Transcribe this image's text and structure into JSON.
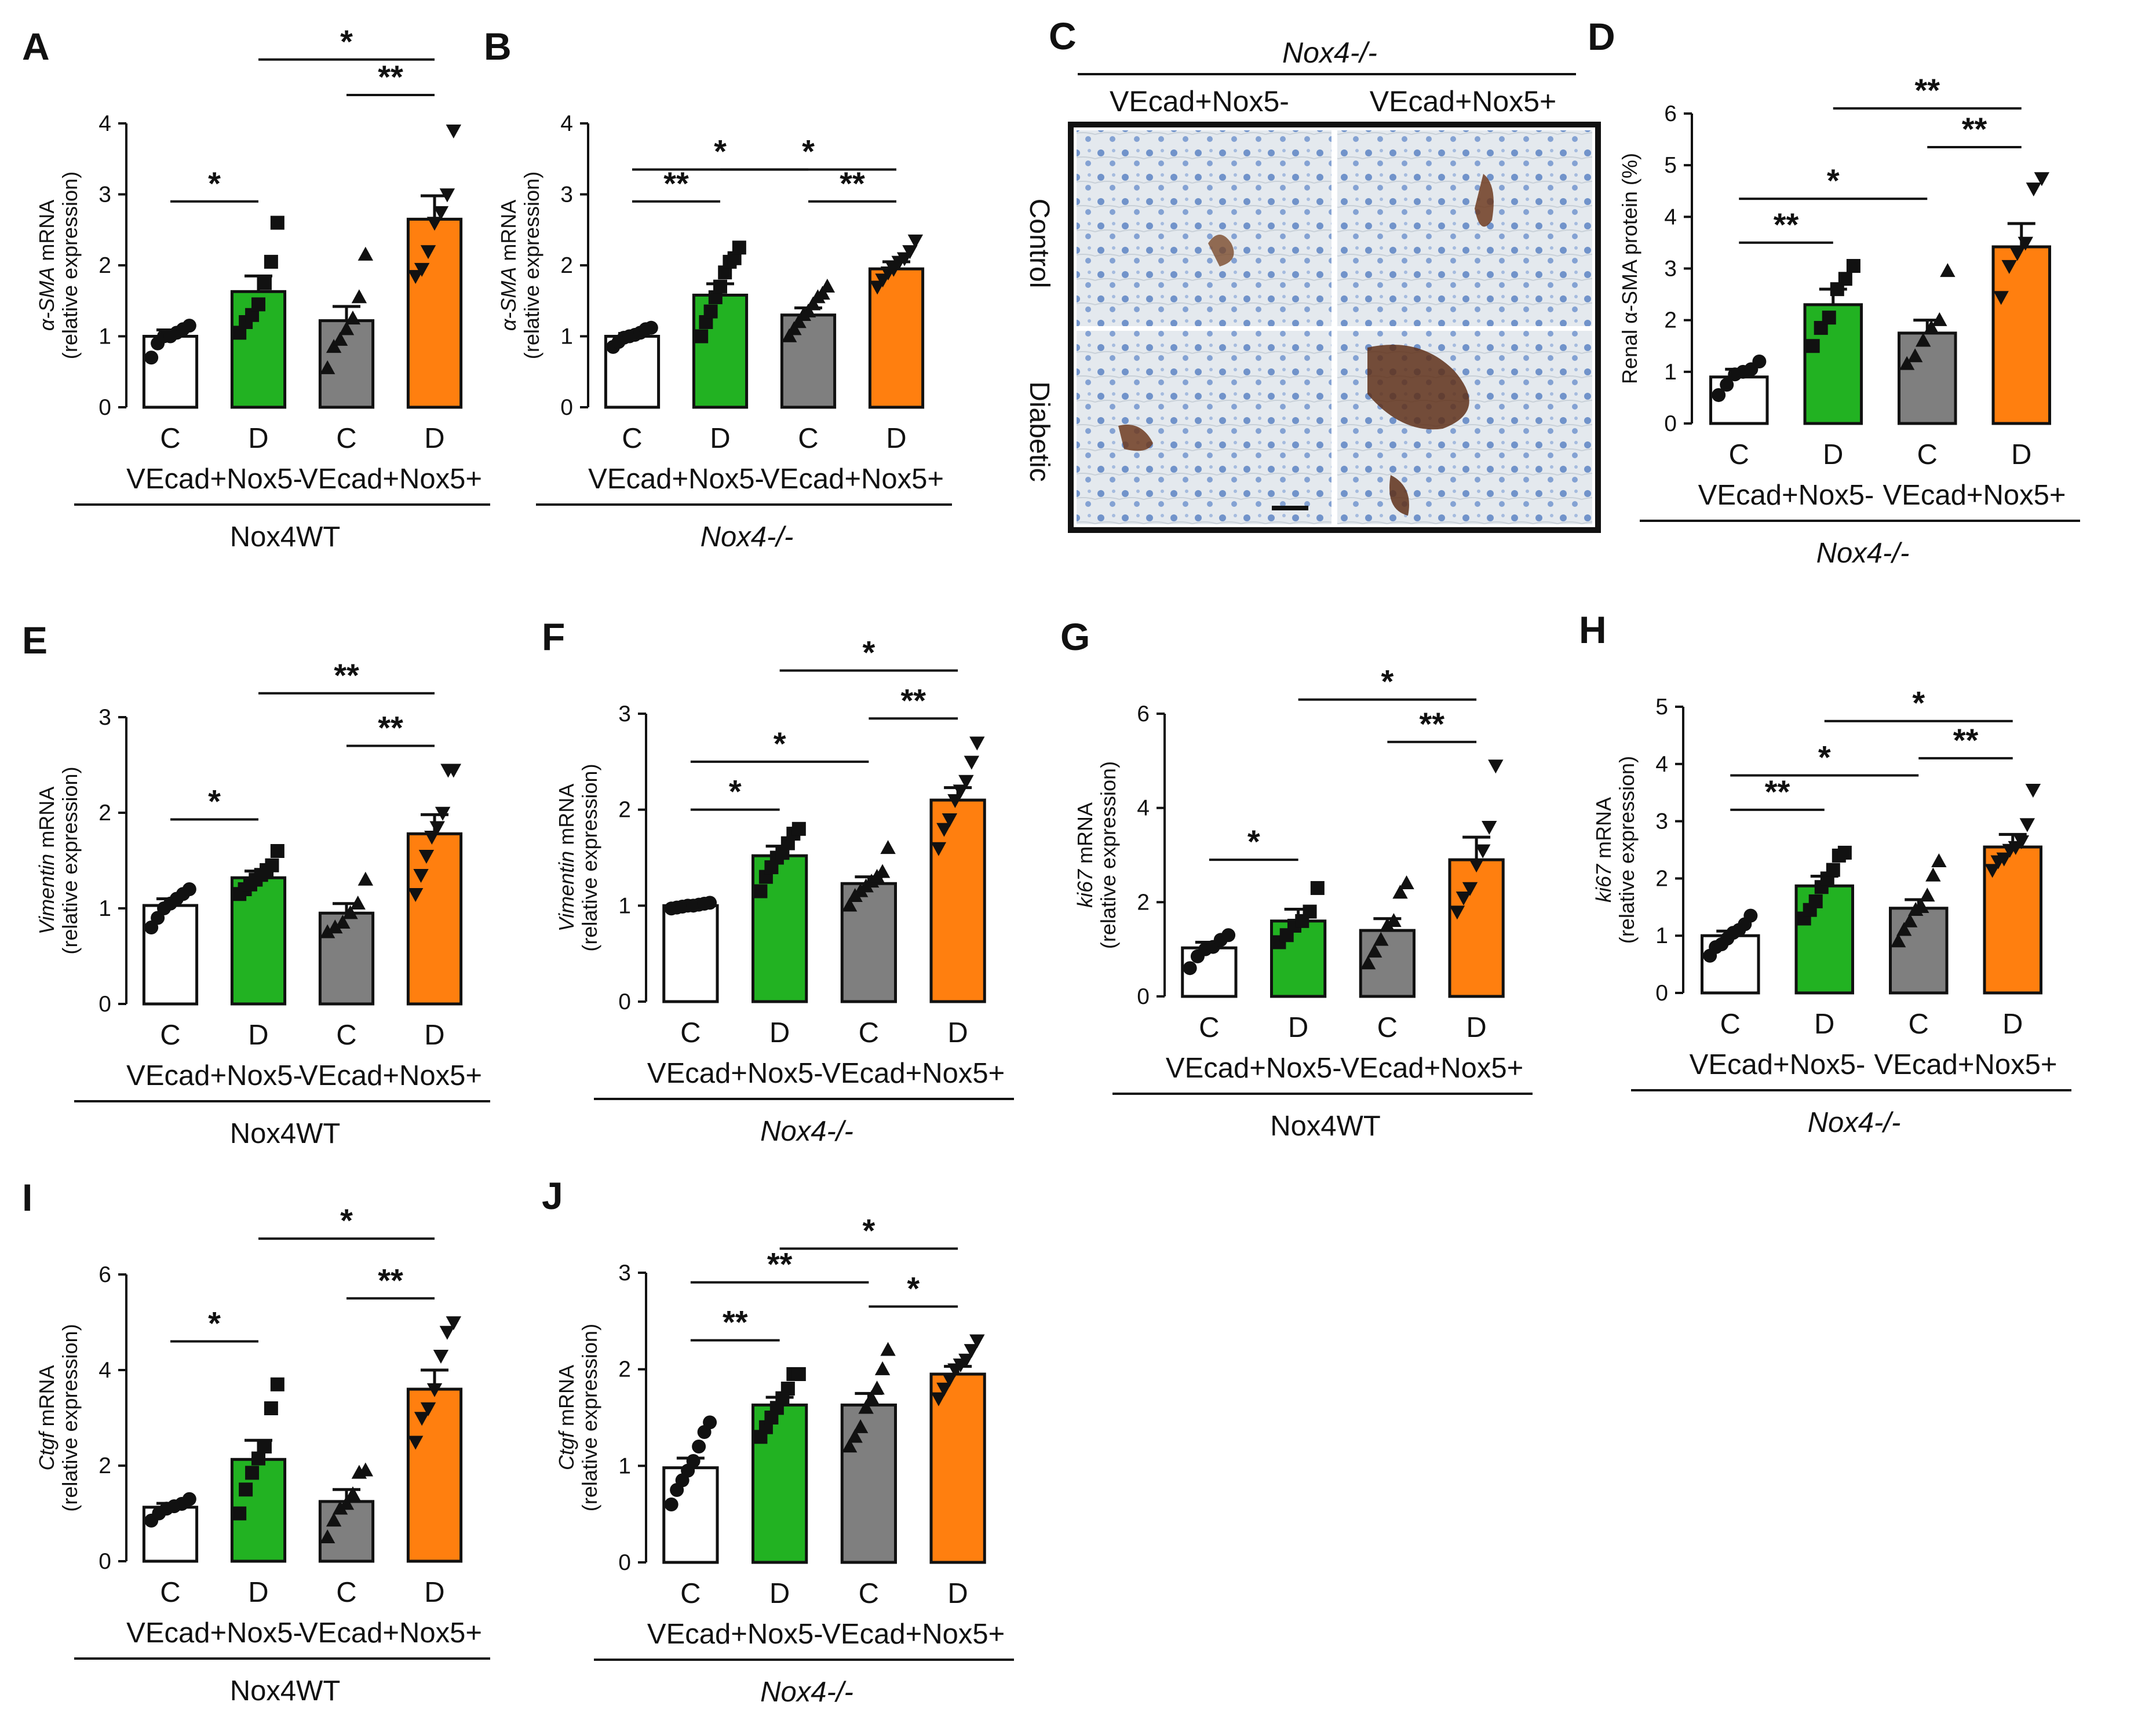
{
  "colors": {
    "C_minus": "#ffffff",
    "D_minus": "#22b222",
    "C_plus": "#7f7f7f",
    "D_plus": "#ff7f0f",
    "ink": "#111111"
  },
  "chart_data": [
    {
      "panel": "A",
      "type": "bar",
      "ylabel_gene": "α-SMA",
      "ylabel_suffix": " mRNA",
      "ylabel_line2": "(relative expression)",
      "ylim": [
        0,
        4
      ],
      "yticks": [
        0,
        1,
        2,
        3,
        4
      ],
      "categories": [
        "C",
        "D",
        "C",
        "D"
      ],
      "groups": [
        "VEcad+Nox5-",
        "VEcad+Nox5+"
      ],
      "genotype": "Nox4WT",
      "genotype_italic": false,
      "values": [
        1.0,
        1.63,
        1.22,
        2.65
      ],
      "sem": [
        0.09,
        0.22,
        0.2,
        0.33
      ],
      "points": [
        [
          0.7,
          0.9,
          1.0,
          1.0,
          1.05,
          1.1,
          1.15
        ],
        [
          1.05,
          1.2,
          1.3,
          1.45,
          1.75,
          2.05,
          2.6
        ],
        [
          0.55,
          0.85,
          0.95,
          1.1,
          1.25,
          1.55,
          2.15
        ],
        [
          1.85,
          1.95,
          2.2,
          2.6,
          2.75,
          3.0,
          3.9
        ]
      ],
      "markers": [
        "circle",
        "square",
        "triangle-up",
        "triangle-down"
      ],
      "sig": [
        {
          "from": 0,
          "to": 1,
          "label": "*",
          "y": 2.9
        },
        {
          "from": 2,
          "to": 3,
          "label": "**",
          "y": 4.4
        },
        {
          "from": 1,
          "to": 3,
          "label": "*",
          "y": 4.9
        }
      ]
    },
    {
      "panel": "B",
      "type": "bar",
      "ylabel_gene": "α-SMA",
      "ylabel_suffix": " mRNA",
      "ylabel_line2": "(relative expression)",
      "ylim": [
        0,
        4
      ],
      "yticks": [
        0,
        1,
        2,
        3,
        4
      ],
      "categories": [
        "C",
        "D",
        "C",
        "D"
      ],
      "groups": [
        "VEcad+Nox5-",
        "VEcad+Nox5+"
      ],
      "genotype": "Nox4-/-",
      "genotype_italic": true,
      "values": [
        1.0,
        1.58,
        1.3,
        1.95
      ],
      "sem": [
        0.04,
        0.16,
        0.1,
        0.1
      ],
      "points": [
        [
          0.85,
          0.92,
          0.98,
          1.0,
          1.02,
          1.05,
          1.1,
          1.12
        ],
        [
          1.0,
          1.2,
          1.35,
          1.55,
          1.7,
          1.9,
          2.05,
          2.1,
          2.25
        ],
        [
          1.0,
          1.1,
          1.2,
          1.3,
          1.35,
          1.45,
          1.55,
          1.6,
          1.7
        ],
        [
          1.7,
          1.8,
          1.9,
          1.95,
          2.05,
          2.1,
          2.2,
          2.35
        ]
      ],
      "markers": [
        "circle",
        "square",
        "triangle-up",
        "triangle-down"
      ],
      "sig": [
        {
          "from": 0,
          "to": 1,
          "label": "**",
          "y": 2.9
        },
        {
          "from": 2,
          "to": 3,
          "label": "**",
          "y": 2.9
        },
        {
          "from": 0,
          "to": 2,
          "label": "*",
          "y": 3.35
        },
        {
          "from": 1,
          "to": 3,
          "label": "*",
          "y": 3.35
        }
      ]
    },
    {
      "panel": "D",
      "type": "bar",
      "ylabel_gene": "",
      "ylabel_suffix": "Renal α-SMA protein (%)",
      "ylabel_line2": "",
      "ylim": [
        0,
        6
      ],
      "yticks": [
        0,
        1,
        2,
        3,
        4,
        5,
        6
      ],
      "categories": [
        "C",
        "D",
        "C",
        "D"
      ],
      "groups": [
        "VEcad+Nox5-",
        "VEcad+Nox5+"
      ],
      "genotype": "Nox4-/-",
      "genotype_italic": true,
      "values": [
        0.9,
        2.3,
        1.75,
        3.42
      ],
      "sem": [
        0.15,
        0.3,
        0.25,
        0.45
      ],
      "points": [
        [
          0.55,
          0.75,
          0.95,
          1.0,
          1.05,
          1.2
        ],
        [
          1.5,
          1.85,
          2.05,
          2.6,
          2.8,
          3.05
        ],
        [
          1.15,
          1.3,
          1.6,
          1.85,
          2.0,
          2.95
        ],
        [
          2.45,
          3.05,
          3.3,
          3.5,
          4.55,
          4.75
        ]
      ],
      "markers": [
        "circle",
        "square",
        "triangle-up",
        "triangle-down"
      ],
      "sig": [
        {
          "from": 0,
          "to": 1,
          "label": "**",
          "y": 3.5
        },
        {
          "from": 2,
          "to": 3,
          "label": "**",
          "y": 5.35
        },
        {
          "from": 0,
          "to": 2,
          "label": "*",
          "y": 4.35
        },
        {
          "from": 1,
          "to": 3,
          "label": "**",
          "y": 6.1
        }
      ]
    },
    {
      "panel": "E",
      "type": "bar",
      "ylabel_gene": "Vimentin",
      "ylabel_suffix": " mRNA",
      "ylabel_line2": "(relative expression)",
      "ylim": [
        0,
        3
      ],
      "yticks": [
        0,
        1,
        2,
        3
      ],
      "categories": [
        "C",
        "D",
        "C",
        "D"
      ],
      "groups": [
        "VEcad+Nox5-",
        "VEcad+Nox5+"
      ],
      "genotype": "Nox4WT",
      "genotype_italic": false,
      "values": [
        1.03,
        1.32,
        0.95,
        1.78
      ],
      "sem": [
        0.07,
        0.07,
        0.1,
        0.2
      ],
      "points": [
        [
          0.8,
          0.9,
          1.0,
          1.05,
          1.1,
          1.15,
          1.2
        ],
        [
          1.15,
          1.2,
          1.25,
          1.3,
          1.35,
          1.4,
          1.45,
          1.6
        ],
        [
          0.75,
          0.8,
          0.85,
          0.95,
          1.05,
          1.3
        ],
        [
          1.15,
          1.35,
          1.55,
          1.75,
          1.85,
          2.0,
          2.45,
          2.45
        ]
      ],
      "markers": [
        "circle",
        "square",
        "triangle-up",
        "triangle-down"
      ],
      "sig": [
        {
          "from": 0,
          "to": 1,
          "label": "*",
          "y": 1.93
        },
        {
          "from": 2,
          "to": 3,
          "label": "**",
          "y": 2.7
        },
        {
          "from": 1,
          "to": 3,
          "label": "**",
          "y": 3.25
        }
      ]
    },
    {
      "panel": "F",
      "type": "bar",
      "ylabel_gene": "Vimentin",
      "ylabel_suffix": " mRNA",
      "ylabel_line2": "(relative expression)",
      "ylim": [
        0,
        3
      ],
      "yticks": [
        0,
        1,
        2,
        3
      ],
      "categories": [
        "C",
        "D",
        "C",
        "D"
      ],
      "groups": [
        "VEcad+Nox5-",
        "VEcad+Nox5+"
      ],
      "genotype": "Nox4-/-",
      "genotype_italic": true,
      "values": [
        1.0,
        1.52,
        1.23,
        2.1
      ],
      "sem": [
        0.02,
        0.1,
        0.07,
        0.13
      ],
      "points": [
        [
          0.97,
          0.98,
          0.99,
          1.0,
          1.0,
          1.01,
          1.02,
          1.03
        ],
        [
          1.15,
          1.3,
          1.4,
          1.5,
          1.55,
          1.65,
          1.75,
          1.8
        ],
        [
          1.0,
          1.1,
          1.15,
          1.2,
          1.25,
          1.3,
          1.35,
          1.6
        ],
        [
          1.6,
          1.8,
          1.9,
          2.1,
          2.2,
          2.3,
          2.5,
          2.7
        ]
      ],
      "markers": [
        "circle",
        "square",
        "triangle-up",
        "triangle-down"
      ],
      "sig": [
        {
          "from": 0,
          "to": 1,
          "label": "*",
          "y": 2.0
        },
        {
          "from": 2,
          "to": 3,
          "label": "**",
          "y": 2.95
        },
        {
          "from": 0,
          "to": 2,
          "label": "*",
          "y": 2.5
        },
        {
          "from": 1,
          "to": 3,
          "label": "*",
          "y": 3.45
        }
      ]
    },
    {
      "panel": "G",
      "type": "bar",
      "ylabel_gene": "ki67",
      "ylabel_suffix": " mRNA",
      "ylabel_line2": "(relative expression)",
      "ylim": [
        0,
        6
      ],
      "yticks": [
        0,
        2,
        4,
        6
      ],
      "categories": [
        "C",
        "D",
        "C",
        "D"
      ],
      "groups": [
        "VEcad+Nox5-",
        "VEcad+Nox5+"
      ],
      "genotype": "Nox4WT",
      "genotype_italic": false,
      "values": [
        1.03,
        1.6,
        1.4,
        2.9
      ],
      "sem": [
        0.12,
        0.25,
        0.25,
        0.48
      ],
      "points": [
        [
          0.6,
          0.85,
          1.0,
          1.05,
          1.2,
          1.3
        ],
        [
          1.15,
          1.3,
          1.5,
          1.6,
          1.8,
          2.3
        ],
        [
          0.7,
          0.95,
          1.2,
          1.5,
          1.6,
          2.2,
          2.4
        ],
        [
          1.8,
          2.1,
          2.3,
          2.8,
          3.1,
          3.6,
          4.9
        ]
      ],
      "markers": [
        "circle",
        "square",
        "triangle-up",
        "triangle-down"
      ],
      "sig": [
        {
          "from": 0,
          "to": 1,
          "label": "*",
          "y": 2.9
        },
        {
          "from": 2,
          "to": 3,
          "label": "**",
          "y": 5.4
        },
        {
          "from": 1,
          "to": 3,
          "label": "*",
          "y": 6.3
        }
      ]
    },
    {
      "panel": "H",
      "type": "bar",
      "ylabel_gene": "ki67",
      "ylabel_suffix": " mRNA",
      "ylabel_line2": "(relative expression)",
      "ylim": [
        0,
        5
      ],
      "yticks": [
        0,
        1,
        2,
        3,
        4,
        5
      ],
      "categories": [
        "C",
        "D",
        "C",
        "D"
      ],
      "groups": [
        "VEcad+Nox5-",
        "VEcad+Nox5+"
      ],
      "genotype": "Nox4-/-",
      "genotype_italic": true,
      "values": [
        1.0,
        1.87,
        1.48,
        2.55
      ],
      "sem": [
        0.08,
        0.17,
        0.15,
        0.22
      ],
      "points": [
        [
          0.65,
          0.8,
          0.85,
          0.95,
          1.05,
          1.1,
          1.2,
          1.35
        ],
        [
          1.3,
          1.45,
          1.6,
          1.85,
          2.0,
          2.15,
          2.4,
          2.45
        ],
        [
          0.9,
          1.1,
          1.25,
          1.45,
          1.5,
          1.7,
          2.05,
          2.3
        ],
        [
          2.15,
          2.3,
          2.35,
          2.5,
          2.55,
          2.65,
          2.95,
          3.55
        ]
      ],
      "markers": [
        "circle",
        "square",
        "triangle-up",
        "triangle-down"
      ],
      "sig": [
        {
          "from": 0,
          "to": 1,
          "label": "**",
          "y": 3.2
        },
        {
          "from": 2,
          "to": 3,
          "label": "**",
          "y": 4.1
        },
        {
          "from": 0,
          "to": 2,
          "label": "*",
          "y": 3.8
        },
        {
          "from": 1,
          "to": 3,
          "label": "*",
          "y": 4.75
        }
      ]
    },
    {
      "panel": "I",
      "type": "bar",
      "ylabel_gene": "Ctgf",
      "ylabel_suffix": " mRNA",
      "ylabel_line2": "(relative expression)",
      "ylim": [
        0,
        6
      ],
      "yticks": [
        0,
        2,
        4,
        6
      ],
      "categories": [
        "C",
        "D",
        "C",
        "D"
      ],
      "groups": [
        "VEcad+Nox5-",
        "VEcad+Nox5+"
      ],
      "genotype": "Nox4WT",
      "genotype_italic": false,
      "values": [
        1.13,
        2.13,
        1.25,
        3.6
      ],
      "sem": [
        0.08,
        0.4,
        0.25,
        0.4
      ],
      "points": [
        [
          0.85,
          1.0,
          1.1,
          1.15,
          1.2,
          1.3
        ],
        [
          1.0,
          1.5,
          1.85,
          2.15,
          2.4,
          3.2,
          3.7
        ],
        [
          0.5,
          0.85,
          1.1,
          1.2,
          1.4,
          1.85,
          1.9
        ],
        [
          2.5,
          3.0,
          3.2,
          3.6,
          4.3,
          4.8,
          5.0
        ]
      ],
      "markers": [
        "circle",
        "square",
        "triangle-up",
        "triangle-down"
      ],
      "sig": [
        {
          "from": 0,
          "to": 1,
          "label": "*",
          "y": 4.6
        },
        {
          "from": 2,
          "to": 3,
          "label": "**",
          "y": 5.5
        },
        {
          "from": 1,
          "to": 3,
          "label": "*",
          "y": 6.75
        }
      ]
    },
    {
      "panel": "J",
      "type": "bar",
      "ylabel_gene": "Ctgf",
      "ylabel_suffix": " mRNA",
      "ylabel_line2": "(relative expression)",
      "ylim": [
        0,
        3
      ],
      "yticks": [
        0,
        1,
        2,
        3
      ],
      "categories": [
        "C",
        "D",
        "C",
        "D"
      ],
      "groups": [
        "VEcad+Nox5-",
        "VEcad+Nox5+"
      ],
      "genotype": "Nox4-/-",
      "genotype_italic": true,
      "values": [
        0.98,
        1.63,
        1.63,
        1.95
      ],
      "sem": [
        0.1,
        0.08,
        0.12,
        0.08
      ],
      "points": [
        [
          0.6,
          0.75,
          0.85,
          0.95,
          1.05,
          1.2,
          1.35,
          1.45
        ],
        [
          1.3,
          1.4,
          1.5,
          1.6,
          1.7,
          1.8,
          1.95,
          1.95
        ],
        [
          1.2,
          1.3,
          1.4,
          1.6,
          1.7,
          1.8,
          2.0,
          2.2
        ],
        [
          1.7,
          1.8,
          1.9,
          2.0,
          2.05,
          2.1,
          2.2,
          2.3
        ]
      ],
      "markers": [
        "circle",
        "square",
        "triangle-up",
        "triangle-down"
      ],
      "sig": [
        {
          "from": 0,
          "to": 1,
          "label": "**",
          "y": 2.3
        },
        {
          "from": 2,
          "to": 3,
          "label": "*",
          "y": 2.65
        },
        {
          "from": 0,
          "to": 2,
          "label": "**",
          "y": 2.9
        },
        {
          "from": 1,
          "to": 3,
          "label": "*",
          "y": 3.25
        }
      ]
    }
  ],
  "micrograph": {
    "panel": "C",
    "genotype": "Nox4-/-",
    "col_labels": [
      "VEcad+Nox5-",
      "VEcad+Nox5+"
    ],
    "row_labels": [
      "Control",
      "Diabetic"
    ]
  }
}
